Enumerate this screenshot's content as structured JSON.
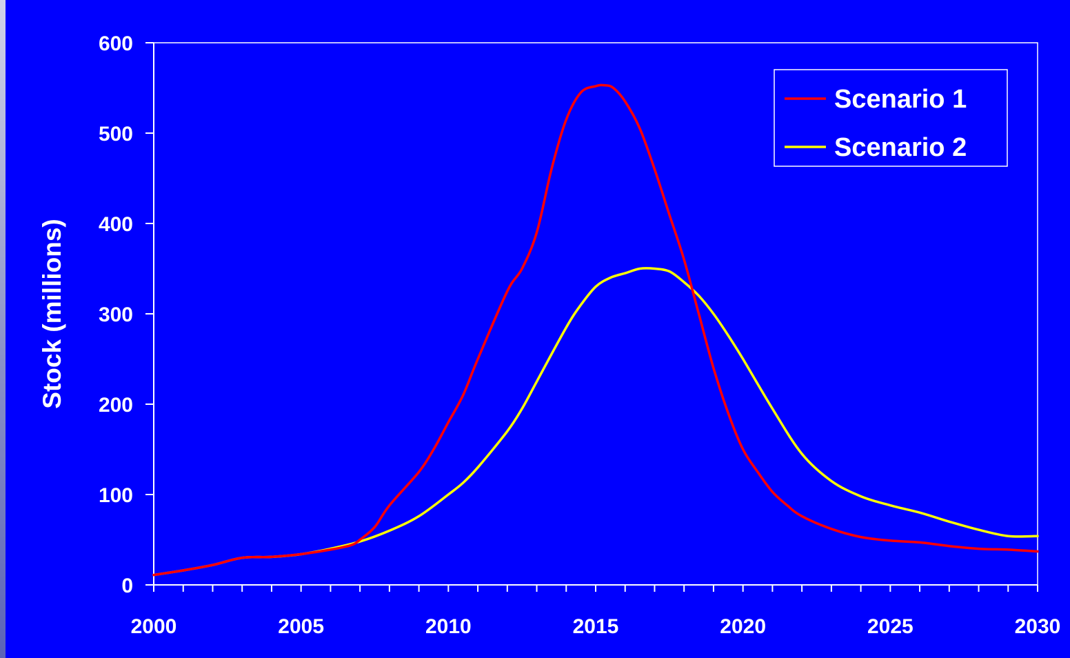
{
  "chart_data": {
    "type": "line",
    "title": "",
    "xlabel": "",
    "ylabel": "Stock (millions)",
    "xlim": [
      2000,
      2030
    ],
    "ylim": [
      0,
      600
    ],
    "x_ticks": [
      "2000",
      "2005",
      "2010",
      "2015",
      "2020",
      "2025",
      "2030"
    ],
    "y_ticks": [
      "0",
      "100",
      "200",
      "300",
      "400",
      "500",
      "600"
    ],
    "grid": false,
    "legend": "top-right",
    "series": [
      {
        "name": "Scenario 1",
        "color": "#ff0000",
        "points": [
          [
            2000,
            11
          ],
          [
            2001,
            16
          ],
          [
            2002,
            22
          ],
          [
            2003,
            30
          ],
          [
            2004,
            31
          ],
          [
            2005,
            34
          ],
          [
            2006,
            39
          ],
          [
            2006.7,
            44
          ],
          [
            2007,
            50
          ],
          [
            2007.5,
            64
          ],
          [
            2008,
            88
          ],
          [
            2009,
            125
          ],
          [
            2009.5,
            150
          ],
          [
            2010,
            180
          ],
          [
            2010.5,
            210
          ],
          [
            2011,
            250
          ],
          [
            2012,
            325
          ],
          [
            2012.5,
            350
          ],
          [
            2013,
            390
          ],
          [
            2013.5,
            460
          ],
          [
            2014,
            515
          ],
          [
            2014.5,
            545
          ],
          [
            2015,
            552
          ],
          [
            2015.3,
            553
          ],
          [
            2015.6,
            550
          ],
          [
            2016,
            535
          ],
          [
            2016.5,
            505
          ],
          [
            2017,
            460
          ],
          [
            2017.5,
            410
          ],
          [
            2018,
            360
          ],
          [
            2018.5,
            300
          ],
          [
            2019,
            240
          ],
          [
            2019.5,
            190
          ],
          [
            2020,
            150
          ],
          [
            2020.5,
            125
          ],
          [
            2021,
            103
          ],
          [
            2021.5,
            88
          ],
          [
            2022,
            76
          ],
          [
            2023,
            62
          ],
          [
            2024,
            53
          ],
          [
            2025,
            49
          ],
          [
            2026,
            47
          ],
          [
            2027,
            43
          ],
          [
            2028,
            40
          ],
          [
            2029,
            39
          ],
          [
            2030,
            37
          ]
        ]
      },
      {
        "name": "Scenario 2",
        "color": "#ffff00",
        "points": [
          [
            2000,
            11
          ],
          [
            2001,
            16
          ],
          [
            2002,
            22
          ],
          [
            2003,
            30
          ],
          [
            2004,
            31
          ],
          [
            2005,
            34
          ],
          [
            2006,
            40
          ],
          [
            2007,
            48
          ],
          [
            2008,
            60
          ],
          [
            2009,
            76
          ],
          [
            2010,
            100
          ],
          [
            2010.5,
            113
          ],
          [
            2011,
            130
          ],
          [
            2012,
            170
          ],
          [
            2012.5,
            195
          ],
          [
            2013,
            225
          ],
          [
            2014,
            285
          ],
          [
            2014.5,
            310
          ],
          [
            2015,
            330
          ],
          [
            2015.5,
            340
          ],
          [
            2016,
            345
          ],
          [
            2016.5,
            350
          ],
          [
            2017,
            350
          ],
          [
            2017.5,
            347
          ],
          [
            2018,
            335
          ],
          [
            2018.5,
            320
          ],
          [
            2019,
            300
          ],
          [
            2019.5,
            276
          ],
          [
            2020,
            250
          ],
          [
            2021,
            195
          ],
          [
            2022,
            145
          ],
          [
            2023,
            115
          ],
          [
            2024,
            98
          ],
          [
            2025,
            88
          ],
          [
            2026,
            80
          ],
          [
            2027,
            70
          ],
          [
            2028,
            61
          ],
          [
            2029,
            54
          ],
          [
            2030,
            54
          ]
        ]
      }
    ]
  }
}
